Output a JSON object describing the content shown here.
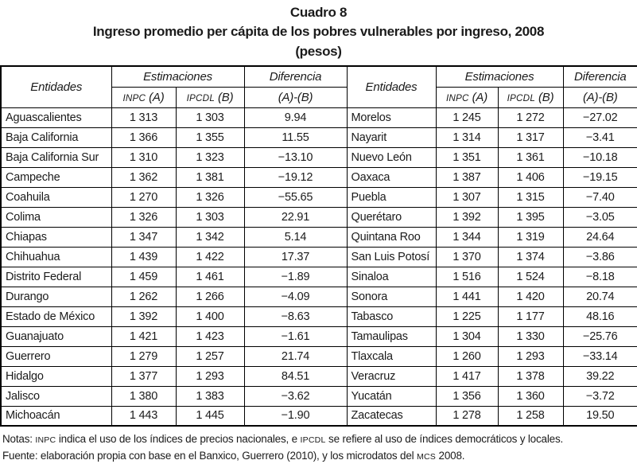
{
  "title": {
    "label": "Cuadro 8",
    "subtitle": "Ingreso promedio per cápita de los pobres vulnerables por ingreso, 2008",
    "unit": "(pesos)"
  },
  "table": {
    "headers": {
      "entidades": "Entidades",
      "estimaciones": "Estimaciones",
      "diferencia": "Diferencia",
      "inpc": "INPC (A)",
      "ipcdl": "IPCDL (B)",
      "diff_formula": "(A)-(B)"
    },
    "rows_left": [
      {
        "entidad": "Aguascalientes",
        "inpc": "1 313",
        "ipcdl": "1 303",
        "dif": "9.94"
      },
      {
        "entidad": "Baja California",
        "inpc": "1 366",
        "ipcdl": "1 355",
        "dif": "11.55"
      },
      {
        "entidad": "Baja California Sur",
        "inpc": "1 310",
        "ipcdl": "1 323",
        "dif": "−13.10"
      },
      {
        "entidad": "Campeche",
        "inpc": "1 362",
        "ipcdl": "1 381",
        "dif": "−19.12"
      },
      {
        "entidad": "Coahuila",
        "inpc": "1 270",
        "ipcdl": "1 326",
        "dif": "−55.65"
      },
      {
        "entidad": "Colima",
        "inpc": "1 326",
        "ipcdl": "1 303",
        "dif": "22.91"
      },
      {
        "entidad": "Chiapas",
        "inpc": "1 347",
        "ipcdl": "1 342",
        "dif": "5.14"
      },
      {
        "entidad": "Chihuahua",
        "inpc": "1 439",
        "ipcdl": "1 422",
        "dif": "17.37"
      },
      {
        "entidad": "Distrito Federal",
        "inpc": "1 459",
        "ipcdl": "1 461",
        "dif": "−1.89"
      },
      {
        "entidad": "Durango",
        "inpc": "1 262",
        "ipcdl": "1 266",
        "dif": "−4.09"
      },
      {
        "entidad": "Estado de México",
        "inpc": "1 392",
        "ipcdl": "1 400",
        "dif": "−8.63"
      },
      {
        "entidad": "Guanajuato",
        "inpc": "1 421",
        "ipcdl": "1 423",
        "dif": "−1.61"
      },
      {
        "entidad": "Guerrero",
        "inpc": "1 279",
        "ipcdl": "1 257",
        "dif": "21.74"
      },
      {
        "entidad": "Hidalgo",
        "inpc": "1 377",
        "ipcdl": "1 293",
        "dif": "84.51"
      },
      {
        "entidad": "Jalisco",
        "inpc": "1 380",
        "ipcdl": "1 383",
        "dif": "−3.62"
      },
      {
        "entidad": "Michoacán",
        "inpc": "1 443",
        "ipcdl": "1 445",
        "dif": "−1.90"
      }
    ],
    "rows_right": [
      {
        "entidad": "Morelos",
        "inpc": "1 245",
        "ipcdl": "1 272",
        "dif": "−27.02"
      },
      {
        "entidad": "Nayarit",
        "inpc": "1 314",
        "ipcdl": "1 317",
        "dif": "−3.41"
      },
      {
        "entidad": "Nuevo León",
        "inpc": "1 351",
        "ipcdl": "1 361",
        "dif": "−10.18"
      },
      {
        "entidad": "Oaxaca",
        "inpc": "1 387",
        "ipcdl": "1 406",
        "dif": "−19.15"
      },
      {
        "entidad": "Puebla",
        "inpc": "1 307",
        "ipcdl": "1 315",
        "dif": "−7.40"
      },
      {
        "entidad": "Querétaro",
        "inpc": "1 392",
        "ipcdl": "1 395",
        "dif": "−3.05"
      },
      {
        "entidad": "Quintana Roo",
        "inpc": "1 344",
        "ipcdl": "1 319",
        "dif": "24.64"
      },
      {
        "entidad": "San Luis Potosí",
        "inpc": "1 370",
        "ipcdl": "1 374",
        "dif": "−3.86"
      },
      {
        "entidad": "Sinaloa",
        "inpc": "1 516",
        "ipcdl": "1 524",
        "dif": "−8.18"
      },
      {
        "entidad": "Sonora",
        "inpc": "1 441",
        "ipcdl": "1 420",
        "dif": "20.74"
      },
      {
        "entidad": "Tabasco",
        "inpc": "1 225",
        "ipcdl": "1 177",
        "dif": "48.16"
      },
      {
        "entidad": "Tamaulipas",
        "inpc": "1 304",
        "ipcdl": "1 330",
        "dif": "−25.76"
      },
      {
        "entidad": "Tlaxcala",
        "inpc": "1 260",
        "ipcdl": "1 293",
        "dif": "−33.14"
      },
      {
        "entidad": "Veracruz",
        "inpc": "1 417",
        "ipcdl": "1 378",
        "dif": "39.22"
      },
      {
        "entidad": "Yucatán",
        "inpc": "1 356",
        "ipcdl": "1 360",
        "dif": "−3.72"
      },
      {
        "entidad": "Zacatecas",
        "inpc": "1 278",
        "ipcdl": "1 258",
        "dif": "19.50"
      }
    ]
  },
  "notes": {
    "line1": "Notas: INPC indica el uso de los índices de precios nacionales, e IPCDL se refiere al uso de índices democráticos y locales.",
    "line2": "Fuente: elaboración propia con base en el Banxico, Guerrero (2010), y los microdatos del MCS 2008."
  },
  "smallcaps_terms": [
    "IPCDL",
    "INPC",
    "MCS"
  ]
}
